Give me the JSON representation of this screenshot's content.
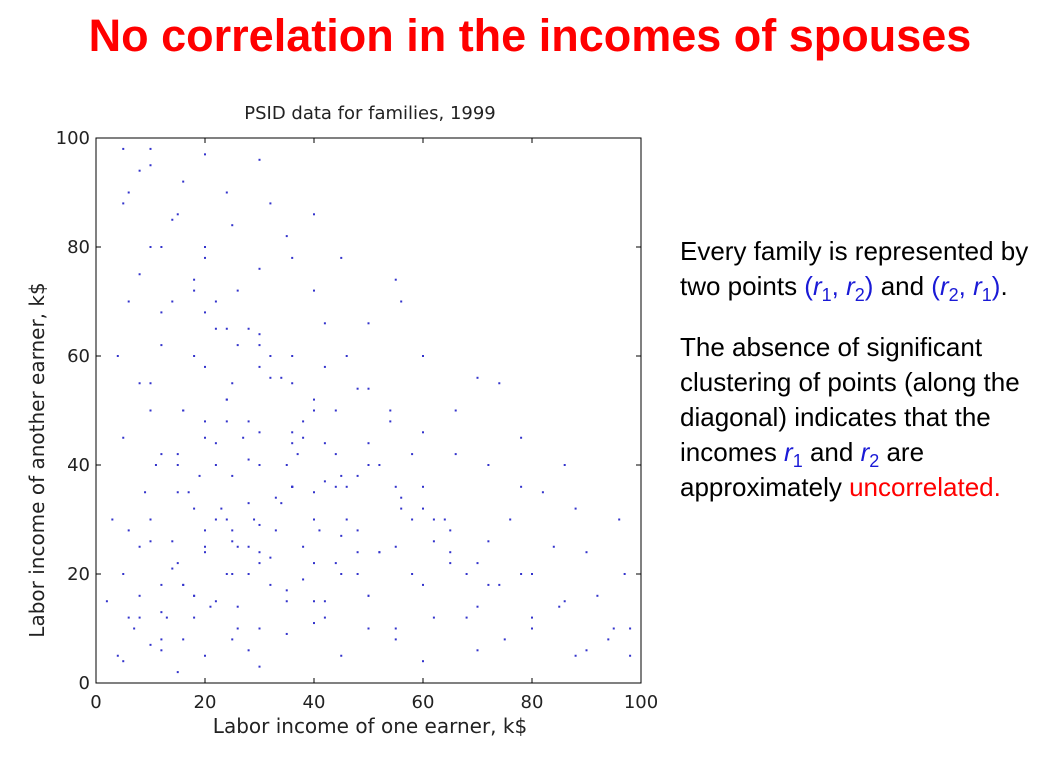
{
  "slide": {
    "title": "No correlation in the incomes of spouses"
  },
  "explanation": {
    "p1_text1": "Every family is represented by two points ",
    "p1_pair1": "(r1, r2)",
    "p1_text2": " and ",
    "p1_pair2": "(r2, r1)",
    "p1_text3": ".",
    "p2_text1": "The absence of significant clustering of points (along the diagonal) indicates that the incomes ",
    "p2_r1": "r1",
    "p2_and": " and ",
    "p2_r2": "r2",
    "p2_text2": " are approximately ",
    "p2_highlight": "uncorrelated.",
    "pair_color": "#1a1ad6",
    "highlight_color": "#ff0000"
  },
  "chart_data": {
    "type": "scatter",
    "title": "PSID data for families, 1999",
    "xlabel": "Labor income of one earner, k$",
    "ylabel": "Labor income of another earner, k$",
    "xlim": [
      0,
      100
    ],
    "ylim": [
      0,
      100
    ],
    "xticks": [
      0,
      20,
      40,
      60,
      80,
      100
    ],
    "yticks": [
      0,
      20,
      40,
      60,
      80,
      100
    ],
    "grid": false,
    "legend": "none",
    "point_color": "#3333cc",
    "series": [
      {
        "x": [
          2,
          4,
          5,
          7,
          8,
          10,
          12,
          13,
          15,
          16,
          17,
          18,
          20,
          21,
          22,
          24,
          25,
          26,
          28,
          30,
          32,
          35,
          36,
          38,
          40,
          42,
          45,
          48,
          50,
          55,
          60,
          65,
          70,
          75,
          80,
          90,
          98,
          3,
          6,
          9,
          11,
          14,
          19,
          23,
          27,
          29,
          33,
          37,
          41,
          46,
          52,
          58,
          62,
          68,
          74,
          85,
          95,
          5,
          10,
          15,
          20,
          25,
          30,
          35,
          40,
          45,
          50,
          55,
          60,
          65,
          70,
          80,
          4,
          8,
          12,
          16,
          20,
          24,
          28,
          32,
          36,
          40,
          44,
          48,
          56,
          64,
          72,
          6,
          12,
          18,
          24,
          30,
          36,
          42,
          48,
          54,
          60,
          66,
          78,
          10,
          20,
          30,
          40,
          50,
          60,
          70,
          5,
          15,
          25,
          35,
          45,
          55,
          8,
          16,
          24,
          32,
          40,
          10,
          20,
          30,
          36,
          18,
          12,
          25,
          30,
          40,
          22,
          8,
          15,
          28
        ],
        "y": [
          15,
          5,
          20,
          10,
          25,
          30,
          18,
          12,
          22,
          8,
          35,
          16,
          25,
          14,
          40,
          20,
          28,
          10,
          33,
          22,
          18,
          15,
          36,
          25,
          30,
          12,
          20,
          24,
          16,
          10,
          18,
          22,
          14,
          8,
          12,
          6,
          5,
          30,
          28,
          35,
          40,
          26,
          38,
          32,
          45,
          30,
          34,
          42,
          28,
          36,
          24,
          30,
          26,
          20,
          18,
          14,
          10,
          45,
          50,
          42,
          48,
          55,
          46,
          40,
          52,
          38,
          44,
          36,
          32,
          28,
          22,
          20,
          60,
          55,
          62,
          50,
          58,
          52,
          48,
          56,
          44,
          50,
          42,
          38,
          34,
          30,
          26,
          70,
          68,
          72,
          65,
          62,
          60,
          58,
          54,
          50,
          46,
          42,
          36,
          80,
          78,
          76,
          72,
          66,
          60,
          56,
          88,
          86,
          84,
          82,
          78,
          74,
          94,
          92,
          90,
          88,
          86,
          98,
          97,
          96,
          36,
          16,
          6,
          26,
          24,
          30,
          44,
          12,
          40,
          20
        ]
      }
    ]
  }
}
